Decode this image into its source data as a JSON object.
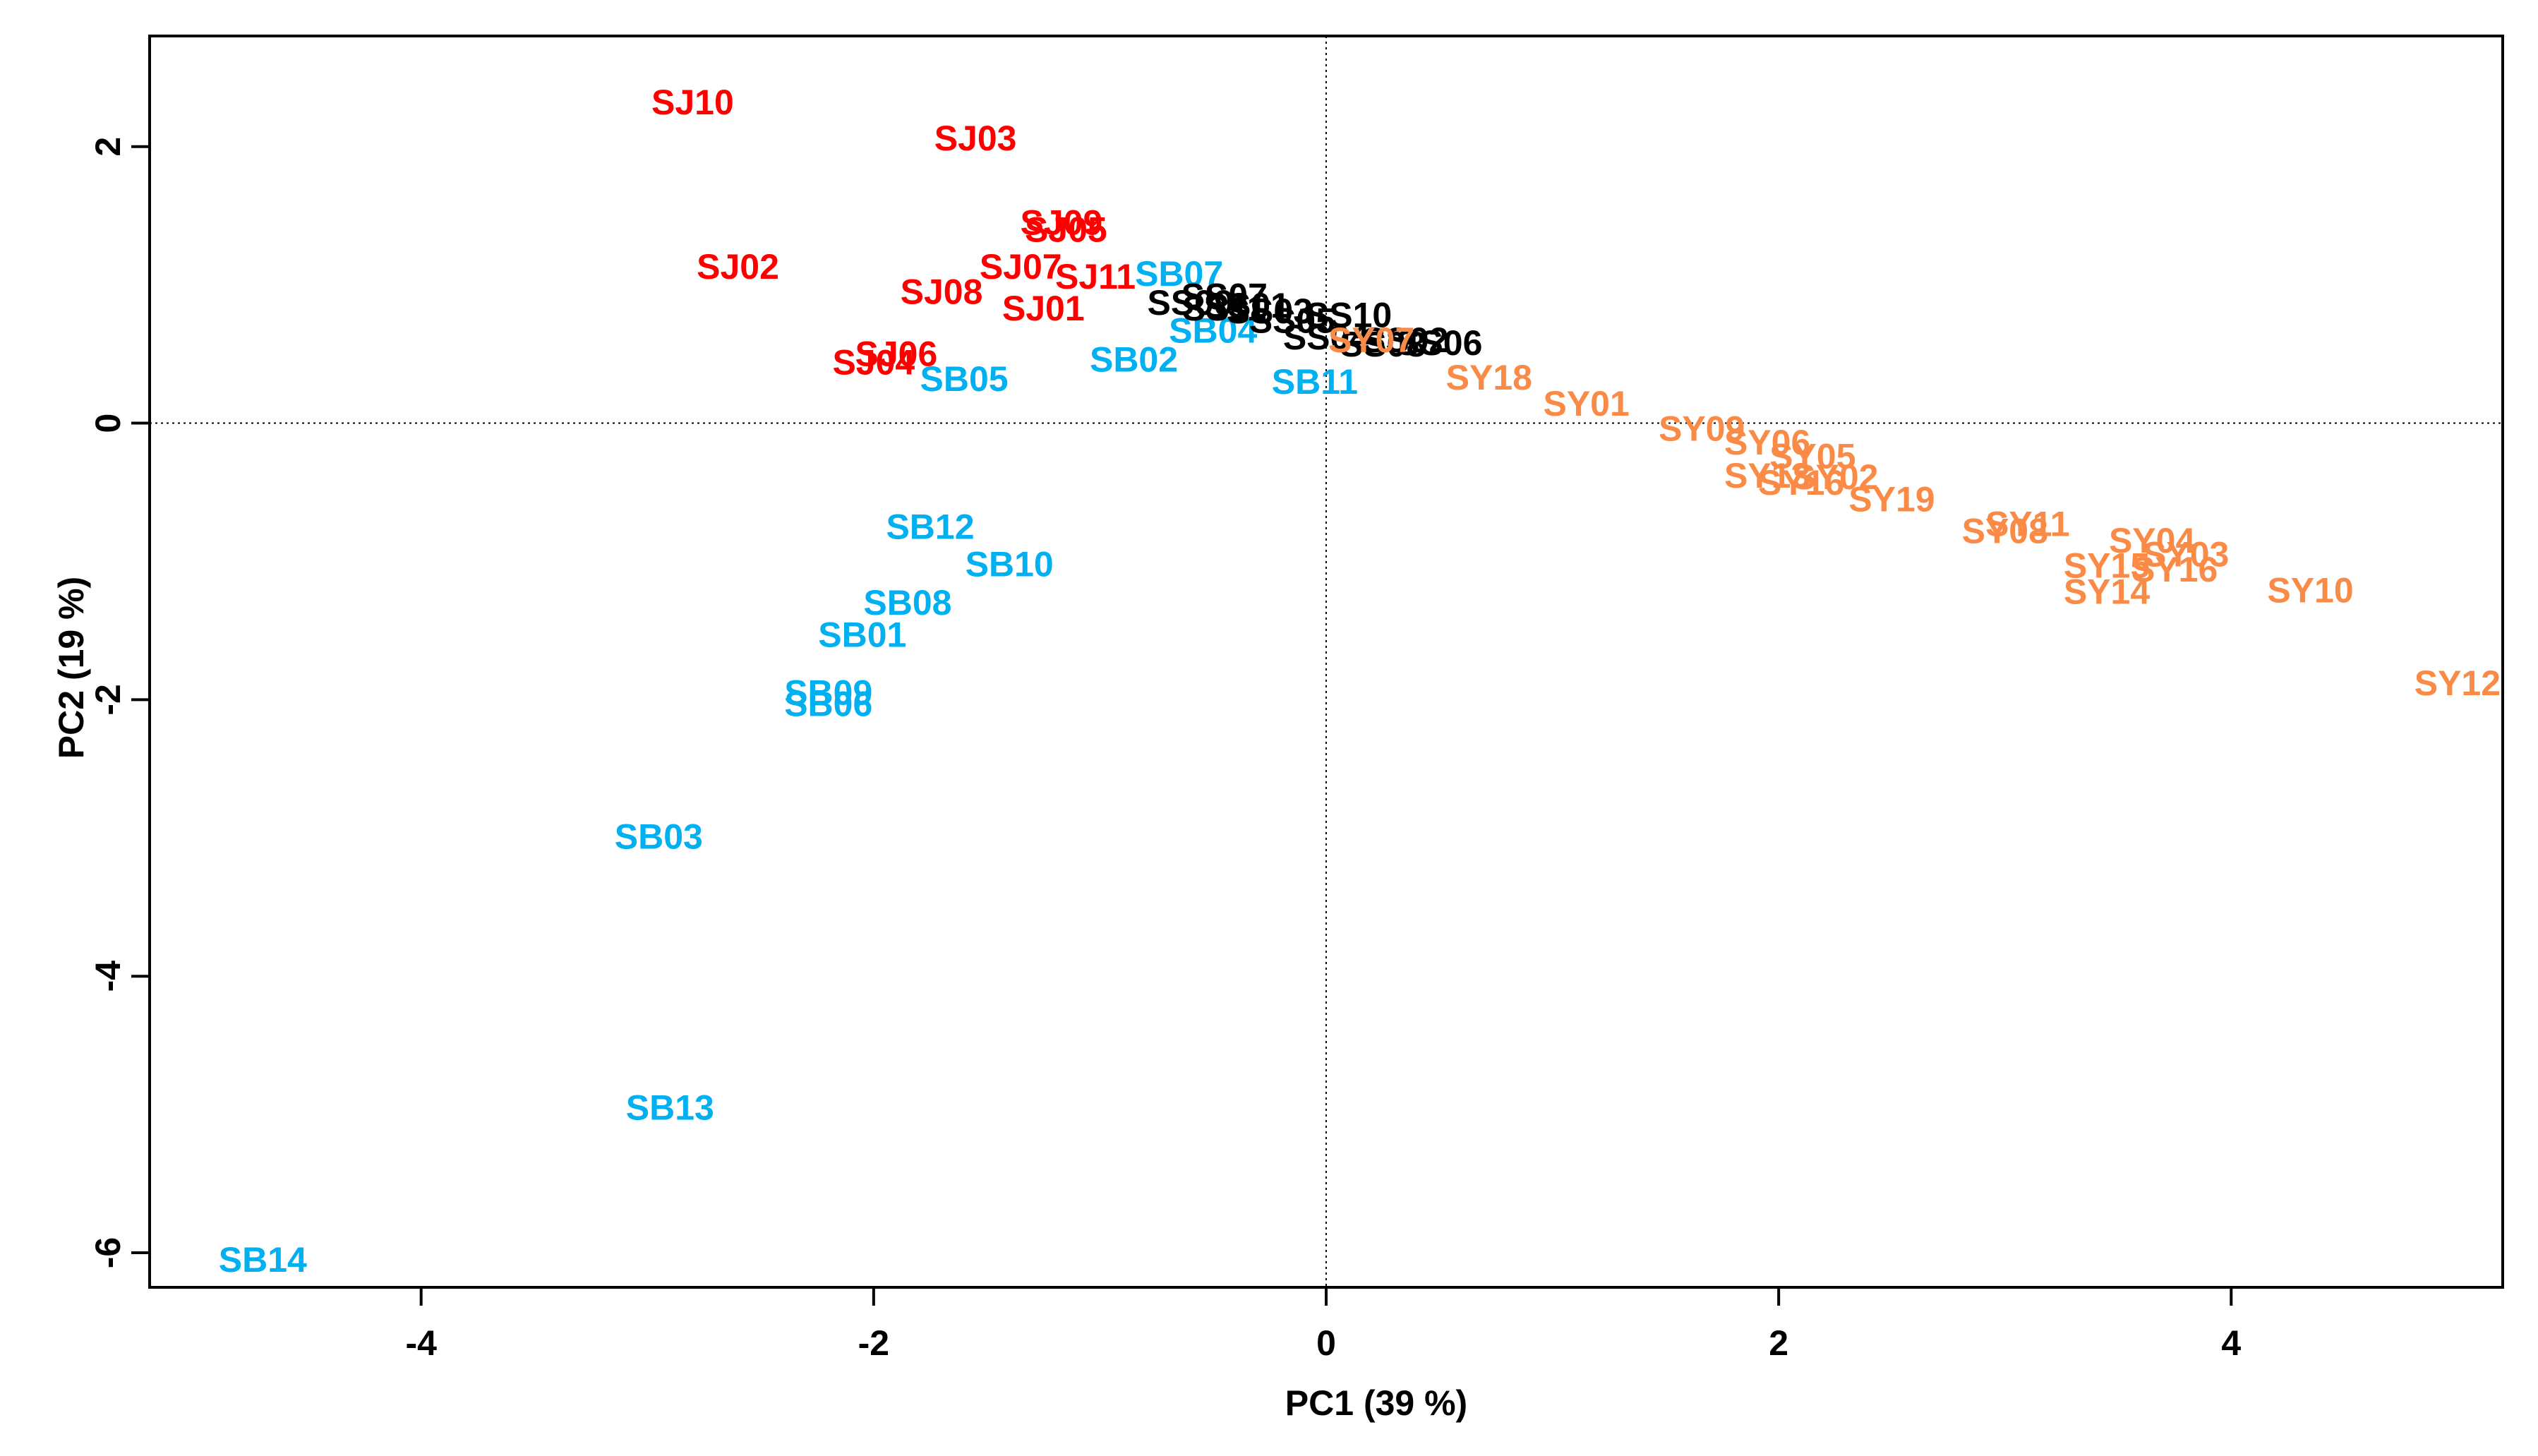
{
  "chart_data": {
    "type": "scatter",
    "title": "",
    "xlabel": "PC1 (39 %)",
    "ylabel": "PC2 (19 %)",
    "xlim": [
      -5.2,
      5.2
    ],
    "ylim": [
      -6.25,
      2.8
    ],
    "xticks": [
      -4,
      -2,
      0,
      2,
      4
    ],
    "xtick_labels": [
      "-4",
      "-2",
      "0",
      "2",
      "4"
    ],
    "yticks": [
      2,
      0,
      -2,
      -4,
      -6
    ],
    "ytick_labels": [
      "2",
      "0",
      "-2",
      "-4",
      "-6"
    ],
    "reference_lines": {
      "x": 0,
      "y": 0,
      "style": "dotted"
    },
    "legend": "none",
    "grid": false,
    "series": [
      {
        "name": "SJ",
        "color": "#ff0000",
        "points": [
          {
            "label": "SJ10",
            "x": -2.8,
            "y": 2.32
          },
          {
            "label": "SJ03",
            "x": -1.55,
            "y": 2.06
          },
          {
            "label": "SJ09",
            "x": -1.17,
            "y": 1.45
          },
          {
            "label": "SJ05",
            "x": -1.15,
            "y": 1.4
          },
          {
            "label": "SJ02",
            "x": -2.6,
            "y": 1.13
          },
          {
            "label": "SJ07",
            "x": -1.35,
            "y": 1.13
          },
          {
            "label": "SJ11",
            "x": -1.02,
            "y": 1.06
          },
          {
            "label": "SJ08",
            "x": -1.7,
            "y": 0.95
          },
          {
            "label": "SJ01",
            "x": -1.25,
            "y": 0.83
          },
          {
            "label": "SJ06",
            "x": -1.9,
            "y": 0.5
          },
          {
            "label": "SJ04",
            "x": -2.0,
            "y": 0.44
          }
        ]
      },
      {
        "name": "SB",
        "color": "#00b0f0",
        "points": [
          {
            "label": "SB07",
            "x": -0.65,
            "y": 1.08
          },
          {
            "label": "SB04",
            "x": -0.5,
            "y": 0.67
          },
          {
            "label": "SB02",
            "x": -0.85,
            "y": 0.46
          },
          {
            "label": "SB05",
            "x": -1.6,
            "y": 0.32
          },
          {
            "label": "SB11",
            "x": -0.05,
            "y": 0.3
          },
          {
            "label": "SB12",
            "x": -1.75,
            "y": -0.75
          },
          {
            "label": "SB10",
            "x": -1.4,
            "y": -1.02
          },
          {
            "label": "SB08",
            "x": -1.85,
            "y": -1.3
          },
          {
            "label": "SB01",
            "x": -2.05,
            "y": -1.53
          },
          {
            "label": "SB09",
            "x": -2.2,
            "y": -1.95
          },
          {
            "label": "SB06",
            "x": -2.2,
            "y": -2.03
          },
          {
            "label": "SB03",
            "x": -2.95,
            "y": -2.99
          },
          {
            "label": "SB13",
            "x": -2.9,
            "y": -4.95
          },
          {
            "label": "SB14",
            "x": -4.7,
            "y": -6.05
          }
        ]
      },
      {
        "name": "SS",
        "color": "#000000",
        "points": [
          {
            "label": "SS07",
            "x": -0.45,
            "y": 0.92
          },
          {
            "label": "SS09",
            "x": -0.6,
            "y": 0.87
          },
          {
            "label": "SS01",
            "x": -0.35,
            "y": 0.85
          },
          {
            "label": "SS11",
            "x": -0.45,
            "y": 0.83
          },
          {
            "label": "SS03",
            "x": -0.25,
            "y": 0.81
          },
          {
            "label": "SS10",
            "x": 0.1,
            "y": 0.78
          },
          {
            "label": "SS05",
            "x": -0.15,
            "y": 0.74
          },
          {
            "label": "SS04",
            "x": 0.0,
            "y": 0.62
          },
          {
            "label": "SS02",
            "x": 0.35,
            "y": 0.6
          },
          {
            "label": "SS08",
            "x": 0.25,
            "y": 0.57
          },
          {
            "label": "SS06",
            "x": 0.5,
            "y": 0.58
          }
        ]
      },
      {
        "name": "SY",
        "color": "#f98b46",
        "points": [
          {
            "label": "SY07",
            "x": 0.2,
            "y": 0.6
          },
          {
            "label": "SY18",
            "x": 0.72,
            "y": 0.33
          },
          {
            "label": "SY01",
            "x": 1.15,
            "y": 0.14
          },
          {
            "label": "SY09",
            "x": 1.66,
            "y": -0.04
          },
          {
            "label": "SY06",
            "x": 1.95,
            "y": -0.14
          },
          {
            "label": "SY05",
            "x": 2.15,
            "y": -0.24
          },
          {
            "label": "SY13",
            "x": 1.95,
            "y": -0.38
          },
          {
            "label": "SY16",
            "x": 2.1,
            "y": -0.43
          },
          {
            "label": "SY02",
            "x": 2.25,
            "y": -0.39
          },
          {
            "label": "SY19",
            "x": 2.5,
            "y": -0.55
          },
          {
            "label": "SY11",
            "x": 3.1,
            "y": -0.73
          },
          {
            "label": "SY08",
            "x": 3.0,
            "y": -0.78
          },
          {
            "label": "SY04",
            "x": 3.65,
            "y": -0.85
          },
          {
            "label": "SY03",
            "x": 3.8,
            "y": -0.95
          },
          {
            "label": "SY15",
            "x": 3.45,
            "y": -1.03
          },
          {
            "label": "SY16",
            "x": 3.75,
            "y": -1.06
          },
          {
            "label": "SY14",
            "x": 3.45,
            "y": -1.22
          },
          {
            "label": "SY10",
            "x": 4.35,
            "y": -1.21
          },
          {
            "label": "SY12",
            "x": 5.0,
            "y": -1.88
          }
        ]
      }
    ]
  }
}
